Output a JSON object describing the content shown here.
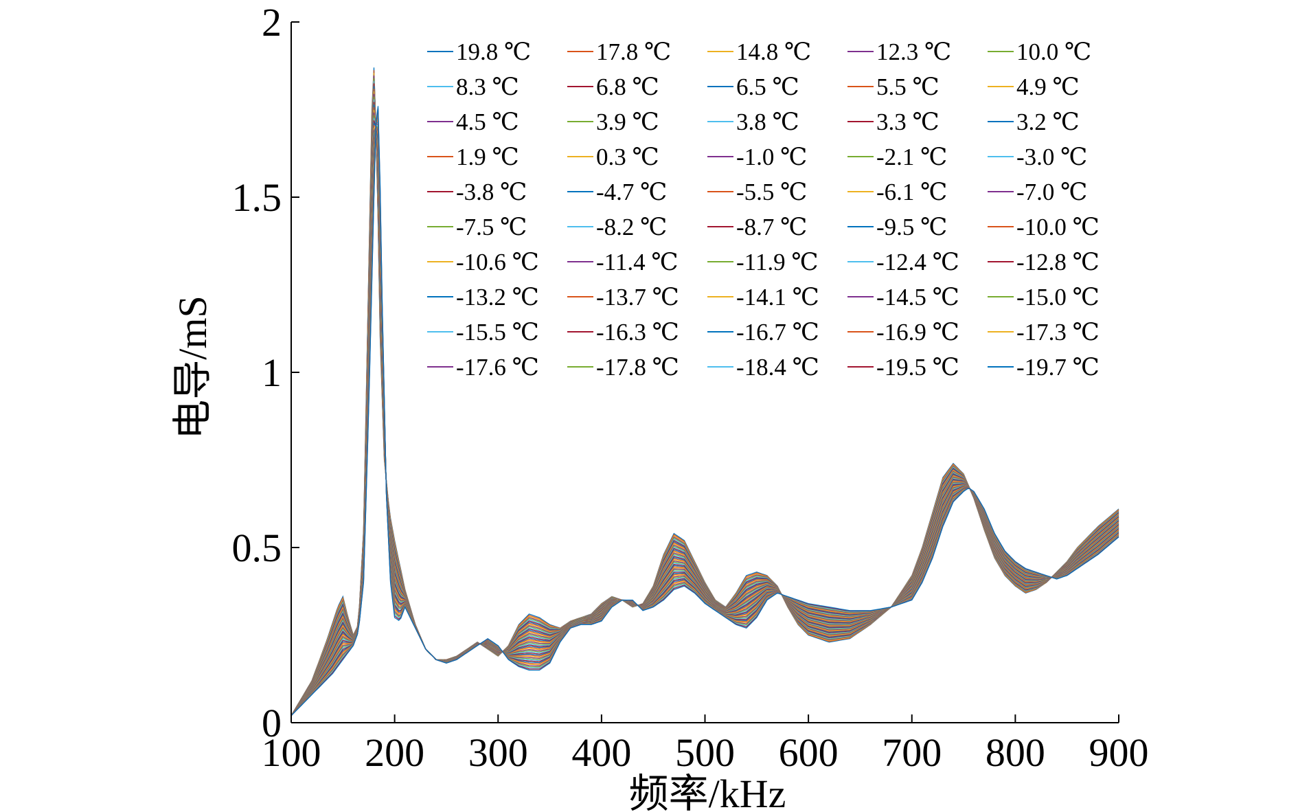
{
  "chart_data": {
    "type": "line",
    "title": "",
    "xlabel": "频率/kHz",
    "ylabel": "电导/mS",
    "xlim": [
      100,
      900
    ],
    "ylim": [
      0,
      2
    ],
    "xticks": [
      100,
      200,
      300,
      400,
      500,
      600,
      700,
      800,
      900
    ],
    "yticks": [
      0,
      0.5,
      1,
      1.5,
      2
    ],
    "ytick_labels": [
      "0",
      "0.5",
      "1",
      "1.5",
      "2"
    ],
    "grid": false,
    "legend_position": "top-right",
    "legend_columns": 5,
    "unit_symbol": "℃",
    "series_colors": [
      "#0072BD",
      "#D95319",
      "#EDB120",
      "#7E2F8E",
      "#77AC30",
      "#4DBEEE",
      "#A2142F"
    ],
    "series": [
      {
        "name": "19.8 ℃",
        "temperature": 19.8
      },
      {
        "name": "17.8 ℃",
        "temperature": 17.8
      },
      {
        "name": "14.8 ℃",
        "temperature": 14.8
      },
      {
        "name": "12.3 ℃",
        "temperature": 12.3
      },
      {
        "name": "10.0 ℃",
        "temperature": 10.0
      },
      {
        "name": "8.3 ℃",
        "temperature": 8.3
      },
      {
        "name": "6.8 ℃",
        "temperature": 6.8
      },
      {
        "name": "6.5 ℃",
        "temperature": 6.5
      },
      {
        "name": "5.5 ℃",
        "temperature": 5.5
      },
      {
        "name": "4.9 ℃",
        "temperature": 4.9
      },
      {
        "name": "4.5 ℃",
        "temperature": 4.5
      },
      {
        "name": "3.9 ℃",
        "temperature": 3.9
      },
      {
        "name": "3.8 ℃",
        "temperature": 3.8
      },
      {
        "name": "3.3 ℃",
        "temperature": 3.3
      },
      {
        "name": "3.2 ℃",
        "temperature": 3.2
      },
      {
        "name": "1.9 ℃",
        "temperature": 1.9
      },
      {
        "name": "0.3 ℃",
        "temperature": 0.3
      },
      {
        "name": "-1.0 ℃",
        "temperature": -1.0
      },
      {
        "name": "-2.1 ℃",
        "temperature": -2.1
      },
      {
        "name": "-3.0 ℃",
        "temperature": -3.0
      },
      {
        "name": "-3.8 ℃",
        "temperature": -3.8
      },
      {
        "name": "-4.7 ℃",
        "temperature": -4.7
      },
      {
        "name": "-5.5 ℃",
        "temperature": -5.5
      },
      {
        "name": "-6.1 ℃",
        "temperature": -6.1
      },
      {
        "name": "-7.0 ℃",
        "temperature": -7.0
      },
      {
        "name": "-7.5 ℃",
        "temperature": -7.5
      },
      {
        "name": "-8.2 ℃",
        "temperature": -8.2
      },
      {
        "name": "-8.7 ℃",
        "temperature": -8.7
      },
      {
        "name": "-9.5 ℃",
        "temperature": -9.5
      },
      {
        "name": "-10.0 ℃",
        "temperature": -10.0
      },
      {
        "name": "-10.6 ℃",
        "temperature": -10.6
      },
      {
        "name": "-11.4 ℃",
        "temperature": -11.4
      },
      {
        "name": "-11.9 ℃",
        "temperature": -11.9
      },
      {
        "name": "-12.4 ℃",
        "temperature": -12.4
      },
      {
        "name": "-12.8 ℃",
        "temperature": -12.8
      },
      {
        "name": "-13.2 ℃",
        "temperature": -13.2
      },
      {
        "name": "-13.7 ℃",
        "temperature": -13.7
      },
      {
        "name": "-14.1 ℃",
        "temperature": -14.1
      },
      {
        "name": "-14.5 ℃",
        "temperature": -14.5
      },
      {
        "name": "-15.0 ℃",
        "temperature": -15.0
      },
      {
        "name": "-15.5 ℃",
        "temperature": -15.5
      },
      {
        "name": "-16.3 ℃",
        "temperature": -16.3
      },
      {
        "name": "-16.7 ℃",
        "temperature": -16.7
      },
      {
        "name": "-16.9 ℃",
        "temperature": -16.9
      },
      {
        "name": "-17.3 ℃",
        "temperature": -17.3
      },
      {
        "name": "-17.6 ℃",
        "temperature": -17.6
      },
      {
        "name": "-17.8 ℃",
        "temperature": -17.8
      },
      {
        "name": "-18.4 ℃",
        "temperature": -18.4
      },
      {
        "name": "-19.5 ℃",
        "temperature": -19.5
      },
      {
        "name": "-19.7 ℃",
        "temperature": -19.7
      }
    ],
    "envelope_warm": {
      "description": "approximate conductance curve of the warmest series (19.8 ℃)",
      "x": [
        100,
        120,
        135,
        145,
        150,
        155,
        160,
        165,
        170,
        175,
        178,
        180,
        183,
        186,
        190,
        195,
        200,
        205,
        210,
        220,
        230,
        240,
        250,
        260,
        270,
        280,
        290,
        300,
        310,
        320,
        330,
        340,
        350,
        360,
        370,
        380,
        390,
        400,
        410,
        420,
        430,
        440,
        450,
        460,
        470,
        480,
        490,
        500,
        510,
        520,
        530,
        540,
        550,
        560,
        570,
        580,
        590,
        600,
        620,
        640,
        660,
        680,
        700,
        710,
        720,
        730,
        740,
        750,
        760,
        770,
        780,
        790,
        800,
        810,
        820,
        830,
        840,
        850,
        860,
        880,
        900
      ],
      "y": [
        0.02,
        0.12,
        0.24,
        0.33,
        0.36,
        0.3,
        0.25,
        0.28,
        0.55,
        1.3,
        1.75,
        1.87,
        1.6,
        1.1,
        0.75,
        0.6,
        0.52,
        0.45,
        0.38,
        0.28,
        0.21,
        0.18,
        0.18,
        0.19,
        0.21,
        0.23,
        0.21,
        0.19,
        0.22,
        0.28,
        0.31,
        0.3,
        0.28,
        0.27,
        0.29,
        0.3,
        0.31,
        0.34,
        0.36,
        0.35,
        0.33,
        0.34,
        0.39,
        0.48,
        0.54,
        0.52,
        0.46,
        0.4,
        0.35,
        0.33,
        0.37,
        0.42,
        0.43,
        0.42,
        0.39,
        0.33,
        0.28,
        0.25,
        0.23,
        0.24,
        0.28,
        0.33,
        0.42,
        0.5,
        0.6,
        0.7,
        0.74,
        0.71,
        0.64,
        0.55,
        0.47,
        0.42,
        0.39,
        0.37,
        0.38,
        0.4,
        0.43,
        0.46,
        0.5,
        0.56,
        0.61
      ]
    },
    "envelope_cold": {
      "description": "approximate conductance curve of the coldest series (-19.7 ℃)",
      "x": [
        100,
        120,
        140,
        150,
        160,
        165,
        170,
        175,
        180,
        183,
        185,
        188,
        192,
        196,
        200,
        205,
        210,
        220,
        230,
        240,
        250,
        260,
        270,
        280,
        290,
        300,
        310,
        320,
        330,
        340,
        350,
        360,
        370,
        380,
        390,
        400,
        410,
        420,
        430,
        440,
        450,
        460,
        470,
        480,
        490,
        500,
        510,
        520,
        530,
        540,
        550,
        560,
        570,
        580,
        590,
        600,
        620,
        640,
        660,
        680,
        700,
        710,
        720,
        730,
        740,
        750,
        755,
        760,
        770,
        780,
        790,
        800,
        810,
        820,
        830,
        840,
        850,
        860,
        880,
        900
      ],
      "y": [
        0.02,
        0.08,
        0.14,
        0.18,
        0.22,
        0.26,
        0.4,
        0.9,
        1.5,
        1.82,
        1.7,
        1.2,
        0.65,
        0.4,
        0.3,
        0.29,
        0.33,
        0.27,
        0.21,
        0.18,
        0.17,
        0.18,
        0.2,
        0.22,
        0.24,
        0.22,
        0.18,
        0.16,
        0.15,
        0.15,
        0.17,
        0.23,
        0.27,
        0.28,
        0.28,
        0.29,
        0.33,
        0.35,
        0.35,
        0.32,
        0.33,
        0.35,
        0.38,
        0.39,
        0.37,
        0.34,
        0.32,
        0.3,
        0.28,
        0.27,
        0.3,
        0.35,
        0.37,
        0.36,
        0.35,
        0.34,
        0.33,
        0.32,
        0.32,
        0.33,
        0.35,
        0.4,
        0.47,
        0.56,
        0.63,
        0.66,
        0.67,
        0.66,
        0.61,
        0.54,
        0.49,
        0.46,
        0.44,
        0.43,
        0.42,
        0.41,
        0.42,
        0.44,
        0.48,
        0.53
      ]
    }
  }
}
